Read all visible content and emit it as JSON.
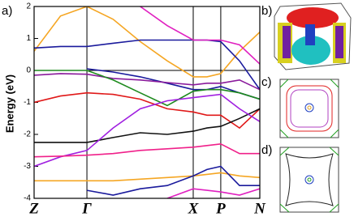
{
  "chart_data": {
    "type": "line",
    "y_label": "Energy (eV)",
    "x": [
      0,
      0.117,
      0.234,
      0.35,
      0.47,
      0.59,
      0.705,
      0.766,
      0.827,
      0.91,
      1
    ],
    "xlim": [
      0,
      1
    ],
    "xticks": [
      {
        "value": 0,
        "label": "Z"
      },
      {
        "value": 0.234,
        "label": "Γ"
      },
      {
        "value": 0.705,
        "label": "X"
      },
      {
        "value": 0.827,
        "label": "P"
      },
      {
        "value": 1,
        "label": "N"
      }
    ],
    "ylim": [
      -4,
      2
    ],
    "yticks": [
      2,
      1,
      0,
      -1,
      -2,
      -3,
      -4
    ],
    "fermi_level": 0,
    "series": [
      {
        "color": "#f5a623",
        "values": [
          0.6,
          1.7,
          2,
          1.6,
          0.9,
          0.3,
          -0.2,
          -0.2,
          -0.1,
          0.6,
          1.2
        ]
      },
      {
        "color": "#1a1a9c",
        "values": [
          0.7,
          0.75,
          0.75,
          0.85,
          0.95,
          0.95,
          0.95,
          0.95,
          0.9,
          0.3,
          -0.6
        ]
      },
      {
        "color": "#1a1a9c",
        "values": [
          null,
          null,
          0.05,
          -0.05,
          -0.2,
          -0.4,
          -0.6,
          -0.6,
          -0.5,
          -0.7,
          -0.9
        ]
      },
      {
        "color": "#e020c0",
        "values": [
          null,
          null,
          null,
          null,
          2,
          1.4,
          0.95,
          0.95,
          0.95,
          0.8,
          0.2
        ]
      },
      {
        "color": "#8a1a9c",
        "values": [
          -0.15,
          -0.1,
          -0.12,
          -0.25,
          -0.3,
          -0.38,
          -0.45,
          -0.4,
          -0.4,
          -0.3,
          -0.6
        ]
      },
      {
        "color": "#1e8a1e",
        "values": [
          0,
          0,
          0,
          -0.3,
          -0.7,
          -1.1,
          -0.65,
          -0.6,
          -0.6,
          -0.7,
          -0.9
        ]
      },
      {
        "color": "#e01818",
        "values": [
          -1,
          -0.8,
          -0.7,
          -0.75,
          -0.9,
          -1.2,
          -1.3,
          -1.4,
          -1.4,
          -1.8,
          -1.2
        ]
      },
      {
        "color": "#111111",
        "values": [
          -2.25,
          -2.25,
          -2.25,
          -2.1,
          -1.95,
          -2,
          -1.9,
          -1.8,
          -1.75,
          -1.5,
          -1.2
        ]
      },
      {
        "color": "#a020e0",
        "values": [
          -3,
          -2.7,
          -2.5,
          -1.8,
          -1.2,
          -0.95,
          -0.85,
          -0.8,
          -0.75,
          -1.2,
          -1.6
        ]
      },
      {
        "color": "#f0208a",
        "values": [
          -2.7,
          -2.68,
          -2.65,
          -2.6,
          -2.5,
          -2.45,
          -2.4,
          -2.35,
          -2.3,
          -2.6,
          -2.6
        ]
      },
      {
        "color": "#f5a623",
        "values": [
          -3.45,
          -3.45,
          -3.45,
          -3.45,
          -3.4,
          -3.35,
          -3.3,
          -3.25,
          -3.2,
          -3.3,
          -3.35
        ]
      },
      {
        "color": "#1a1a9c",
        "values": [
          null,
          null,
          -3.75,
          -3.9,
          -3.7,
          -3.6,
          -3.3,
          -3.1,
          -3,
          -3.6,
          -3.6
        ]
      },
      {
        "color": "#e020c0",
        "values": [
          null,
          null,
          null,
          null,
          null,
          -4,
          -3.7,
          -3.75,
          -3.8,
          -3.9,
          -3.7
        ]
      }
    ]
  },
  "panels": [
    "a)",
    "b)",
    "c)",
    "d)"
  ]
}
